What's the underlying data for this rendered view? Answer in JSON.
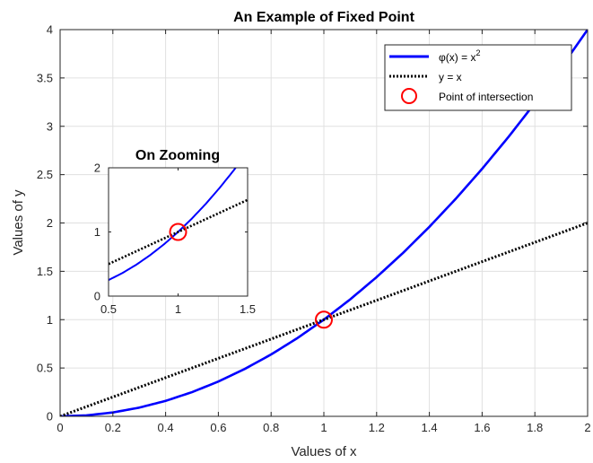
{
  "chart_data": [
    {
      "type": "line",
      "title": "An Example of Fixed Point",
      "xlabel": "Values of x",
      "ylabel": "Values of y",
      "xlim": [
        0,
        2
      ],
      "ylim": [
        0,
        4
      ],
      "xticks": [
        0,
        0.2,
        0.4,
        0.6,
        0.8,
        1,
        1.2,
        1.4,
        1.6,
        1.8,
        2
      ],
      "xtick_labels": [
        "0",
        "0.2",
        "0.4",
        "0.6",
        "0.8",
        "1",
        "1.2",
        "1.4",
        "1.6",
        "1.8",
        "2"
      ],
      "yticks": [
        0,
        0.5,
        1,
        1.5,
        2,
        2.5,
        3,
        3.5,
        4
      ],
      "ytick_labels": [
        "0",
        "0.5",
        "1",
        "1.5",
        "2",
        "2.5",
        "3",
        "3.5",
        "4"
      ],
      "grid": true,
      "legend_position": "top-right",
      "series": [
        {
          "name": "φ(x) = x²",
          "legend_base": "φ(x) = x",
          "legend_sup": "2",
          "style": "solid",
          "color": "#0000FF",
          "x": [
            0,
            0.1,
            0.2,
            0.3,
            0.4,
            0.5,
            0.6,
            0.7,
            0.8,
            0.9,
            1,
            1.1,
            1.2,
            1.3,
            1.4,
            1.5,
            1.6,
            1.7,
            1.8,
            1.9,
            2
          ],
          "y": [
            0,
            0.01,
            0.04,
            0.09,
            0.16,
            0.25,
            0.36,
            0.49,
            0.64,
            0.81,
            1,
            1.21,
            1.44,
            1.69,
            1.96,
            2.25,
            2.56,
            2.89,
            3.24,
            3.61,
            4
          ]
        },
        {
          "name": "y = x",
          "style": "dotted",
          "color": "#000000",
          "x": [
            0,
            2
          ],
          "y": [
            0,
            2
          ]
        },
        {
          "name": "Point of intersection",
          "style": "marker-circle",
          "color": "#FF0000",
          "x": [
            1
          ],
          "y": [
            1
          ]
        }
      ]
    },
    {
      "type": "line",
      "title": "On Zooming",
      "xlim": [
        0.5,
        1.5
      ],
      "ylim": [
        0,
        2
      ],
      "xticks": [
        0.5,
        1,
        1.5
      ],
      "xtick_labels": [
        "0.5",
        "1",
        "1.5"
      ],
      "yticks": [
        0,
        1,
        2
      ],
      "ytick_labels": [
        "0",
        "1",
        "2"
      ],
      "grid": false,
      "series": [
        {
          "style": "solid",
          "color": "#0000FF",
          "x": [
            0.5,
            0.6,
            0.7,
            0.8,
            0.9,
            1,
            1.1,
            1.2,
            1.3,
            1.4,
            1.5
          ],
          "y": [
            0.25,
            0.36,
            0.49,
            0.64,
            0.81,
            1,
            1.21,
            1.44,
            1.69,
            1.96,
            2.25
          ]
        },
        {
          "style": "dotted",
          "color": "#000000",
          "x": [
            0.5,
            1.5
          ],
          "y": [
            0.5,
            1.5
          ]
        },
        {
          "style": "marker-circle",
          "color": "#FF0000",
          "x": [
            1
          ],
          "y": [
            1
          ]
        }
      ]
    }
  ]
}
